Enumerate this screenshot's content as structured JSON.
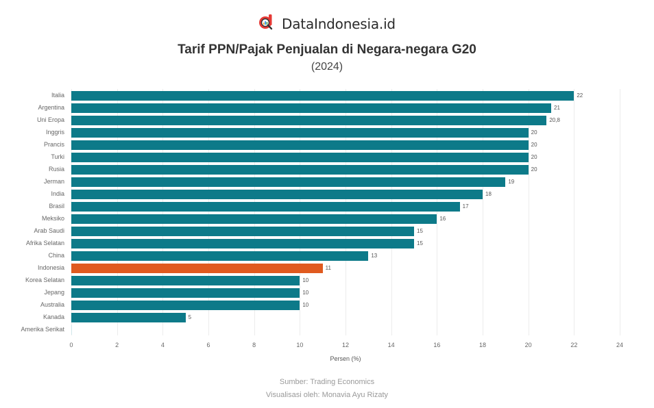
{
  "brand": {
    "name": "DataIndonesia.id",
    "logo_icon": "magnifier-chart-logo-icon",
    "logo_color": "#e53935"
  },
  "colors": {
    "bar": "#0d7a89",
    "highlight": "#e05a1f",
    "grid": "#ececec"
  },
  "footer": {
    "source": "Sumber: Trading Economics",
    "credit": "Visualisasi oleh: Monavia Ayu Rizaty"
  },
  "chart_data": {
    "type": "bar",
    "orientation": "horizontal",
    "title": "Tarif PPN/Pajak Penjualan di Negara-negara G20",
    "subtitle": "(2024)",
    "xlabel": "Persen (%)",
    "ylabel": "",
    "xlim": [
      0,
      24
    ],
    "xticks": [
      "0",
      "2",
      "4",
      "6",
      "8",
      "10",
      "12",
      "14",
      "16",
      "18",
      "20",
      "22",
      "24"
    ],
    "grid": true,
    "legend": null,
    "highlight": "Indonesia",
    "categories": [
      "Italia",
      "Argentina",
      "Uni Eropa",
      "Inggris",
      "Prancis",
      "Turki",
      "Rusia",
      "Jerman",
      "India",
      "Brasil",
      "Meksiko",
      "Arab Saudi",
      "Afrika Selatan",
      "China",
      "Indonesia",
      "Korea Selatan",
      "Jepang",
      "Australia",
      "Kanada",
      "Amerika Serikat"
    ],
    "values": [
      22,
      21,
      20.8,
      20,
      20,
      20,
      20,
      19,
      18,
      17,
      16,
      15,
      15,
      13,
      11,
      10,
      10,
      10,
      5,
      0
    ],
    "value_labels": [
      "22",
      "21",
      "20,8",
      "20",
      "20",
      "20",
      "20",
      "19",
      "18",
      "17",
      "16",
      "15",
      "15",
      "13",
      "11",
      "10",
      "10",
      "10",
      "5",
      ""
    ]
  }
}
